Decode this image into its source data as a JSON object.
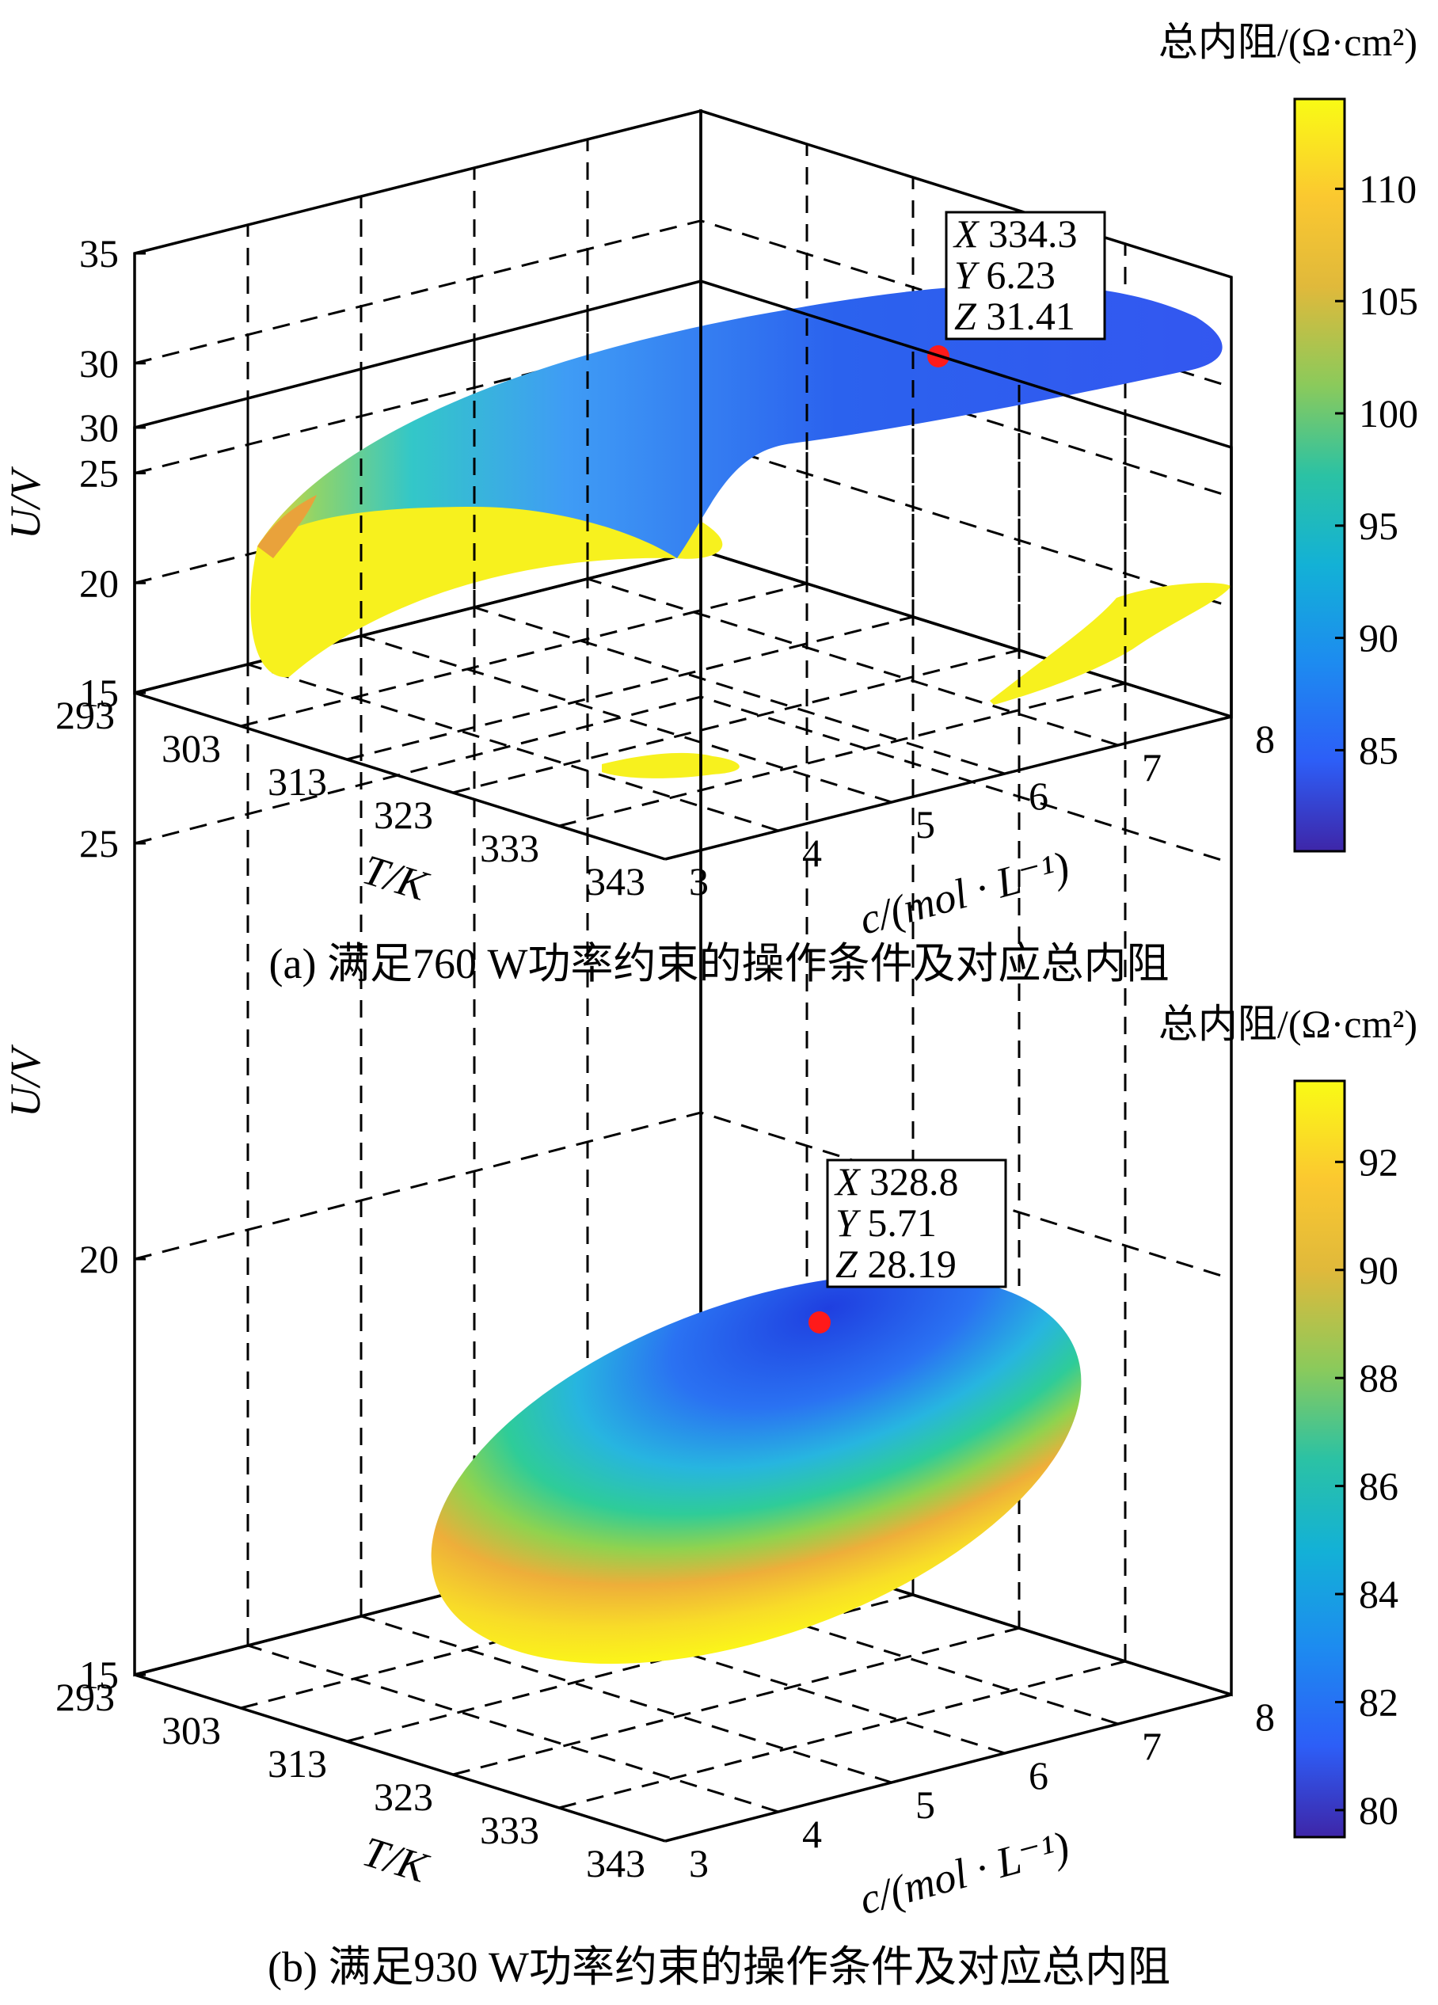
{
  "chart_data": [
    {
      "type": "surface3d",
      "caption": "(a) 满足760 W功率约束的操作条件及对应总内阻",
      "colorbar_title": "总内阻/(Ω·cm²)",
      "colorbar_ticks": [
        85,
        90,
        95,
        100,
        105,
        110
      ],
      "colorbar_range": [
        80.5,
        114
      ],
      "xlabel": "T/K",
      "ylabel": "c/(mol · L⁻¹)",
      "zlabel": "U/V",
      "x_ticks": [
        293,
        303,
        313,
        323,
        333,
        343
      ],
      "y_ticks": [
        3,
        4,
        5,
        6,
        7,
        8
      ],
      "z_ticks": [
        15,
        20,
        25,
        30,
        35
      ],
      "xlim": [
        293,
        343
      ],
      "ylim": [
        3,
        8
      ],
      "zlim": [
        15,
        35
      ],
      "grid": true,
      "colormap": "parula",
      "datatip": {
        "x_label": "X",
        "x": "334.3",
        "y_label": "Y",
        "y": "6.23",
        "z_label": "Z",
        "z": "31.41"
      },
      "marker_color": "#ff1a1a"
    },
    {
      "type": "surface3d",
      "caption": "(b) 满足930 W功率约束的操作条件及对应总内阻",
      "colorbar_title": "总内阻/(Ω·cm²)",
      "colorbar_ticks": [
        80,
        82,
        84,
        86,
        88,
        90,
        92
      ],
      "colorbar_range": [
        79.5,
        93.5
      ],
      "xlabel": "T/K",
      "ylabel": "c/(mol · L⁻¹)",
      "zlabel": "U/V",
      "x_ticks": [
        293,
        303,
        313,
        323,
        333,
        343
      ],
      "y_ticks": [
        3,
        4,
        5,
        6,
        7,
        8
      ],
      "z_ticks": [
        15,
        20,
        25,
        30
      ],
      "xlim": [
        293,
        343
      ],
      "ylim": [
        3,
        8
      ],
      "zlim": [
        15,
        30
      ],
      "grid": true,
      "colormap": "parula",
      "datatip": {
        "x_label": "X",
        "x": "328.8",
        "y_label": "Y",
        "y": "5.71",
        "z_label": "Z",
        "z": "28.19"
      },
      "marker_color": "#ff1a1a"
    }
  ]
}
